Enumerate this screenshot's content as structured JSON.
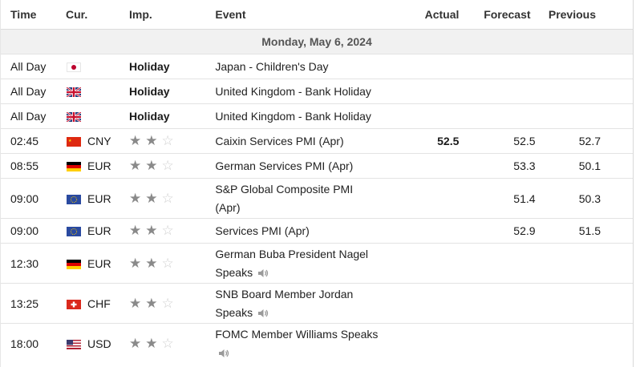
{
  "headers": {
    "time": "Time",
    "currency": "Cur.",
    "importance": "Imp.",
    "event": "Event",
    "actual": "Actual",
    "forecast": "Forecast",
    "previous": "Previous"
  },
  "date_label": "Monday, May 6, 2024",
  "colors": {
    "star_on": "#8a8a8a",
    "star_off": "#cfcfcf",
    "date_bg": "#f1f1f1"
  },
  "rows": [
    {
      "time": "All Day",
      "flag": "japan",
      "currency": "",
      "importance_label": "Holiday",
      "event": "Japan - Children's Day",
      "actual": "",
      "forecast": "",
      "previous": ""
    },
    {
      "time": "All Day",
      "flag": "united-kingdom",
      "currency": "",
      "importance_label": "Holiday",
      "event": "United Kingdom - Bank Holiday",
      "actual": "",
      "forecast": "",
      "previous": ""
    },
    {
      "time": "All Day",
      "flag": "united-kingdom",
      "currency": "",
      "importance_label": "Holiday",
      "event": "United Kingdom - Bank Holiday",
      "actual": "",
      "forecast": "",
      "previous": ""
    },
    {
      "time": "02:45",
      "flag": "china",
      "currency": "CNY",
      "stars": 2,
      "event": "Caixin Services PMI (Apr)",
      "actual": "52.5",
      "forecast": "52.5",
      "previous": "52.7"
    },
    {
      "time": "08:55",
      "flag": "germany",
      "currency": "EUR",
      "stars": 2,
      "event": "German Services PMI (Apr)",
      "actual": "",
      "forecast": "53.3",
      "previous": "50.1"
    },
    {
      "time": "09:00",
      "flag": "european-union",
      "currency": "EUR",
      "stars": 2,
      "event_line1": "S&P Global Composite PMI",
      "event_line2": "(Apr)",
      "actual": "",
      "forecast": "51.4",
      "previous": "50.3"
    },
    {
      "time": "09:00",
      "flag": "european-union",
      "currency": "EUR",
      "stars": 2,
      "event": "Services PMI (Apr)",
      "actual": "",
      "forecast": "52.9",
      "previous": "51.5"
    },
    {
      "time": "12:30",
      "flag": "germany",
      "currency": "EUR",
      "stars": 2,
      "event_line1": "German Buba President Nagel",
      "event_line2": "Speaks",
      "speaker": "speaker-icon",
      "actual": "",
      "forecast": "",
      "previous": ""
    },
    {
      "time": "13:25",
      "flag": "switzerland",
      "currency": "CHF",
      "stars": 2,
      "event_line1": "SNB Board Member Jordan",
      "event_line2": "Speaks",
      "speaker": "speaker-icon",
      "actual": "",
      "forecast": "",
      "previous": ""
    },
    {
      "time": "18:00",
      "flag": "united-states",
      "currency": "USD",
      "stars": 2,
      "event_line1": "FOMC Member Williams Speaks",
      "event_line2": "",
      "speaker": "speaker-icon",
      "actual": "",
      "forecast": "",
      "previous": ""
    }
  ]
}
